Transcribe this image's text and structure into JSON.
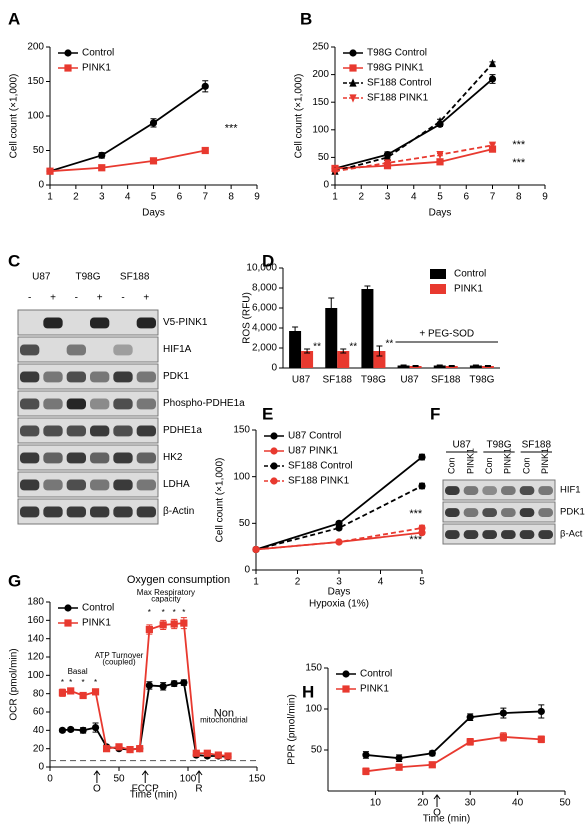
{
  "chart_data": [
    {
      "label": "A",
      "type": "line",
      "xlabel": "Days",
      "ylabel": "Cell count (×1,000)",
      "x": [
        1,
        3,
        5,
        7
      ],
      "xlim": [
        1,
        9
      ],
      "xticks": [
        1,
        2,
        3,
        4,
        5,
        6,
        7,
        8,
        9
      ],
      "ylim": [
        0,
        200
      ],
      "yticks": [
        0,
        50,
        100,
        150,
        200
      ],
      "legend": "upper left",
      "series": [
        {
          "name": "Control",
          "color": "#000000",
          "marker": "circle",
          "dash": false,
          "values": [
            20,
            43,
            90,
            143
          ],
          "errors": [
            1,
            4,
            6,
            8
          ]
        },
        {
          "name": "PINK1",
          "color": "#e8392f",
          "marker": "square",
          "dash": false,
          "values": [
            20,
            25,
            35,
            50
          ],
          "errors": [
            1,
            1,
            2,
            2
          ]
        }
      ],
      "annotations": [
        {
          "text": "***",
          "x": 8,
          "y": 82
        }
      ]
    },
    {
      "label": "B",
      "type": "line",
      "xlabel": "Days",
      "ylabel": "Cell count (×1,000)",
      "x": [
        1,
        3,
        5,
        7
      ],
      "xlim": [
        1,
        9
      ],
      "xticks": [
        1,
        2,
        3,
        4,
        5,
        6,
        7,
        8,
        9
      ],
      "ylim": [
        0,
        250
      ],
      "yticks": [
        0,
        50,
        100,
        150,
        200,
        250
      ],
      "legend": "upper left",
      "series": [
        {
          "name": "T98G Control",
          "color": "#000000",
          "marker": "circle",
          "dash": false,
          "values": [
            30,
            55,
            110,
            192
          ],
          "errors": [
            1,
            5,
            4,
            8
          ]
        },
        {
          "name": "T98G PINK1",
          "color": "#e8392f",
          "marker": "square",
          "dash": false,
          "values": [
            30,
            35,
            42,
            65
          ],
          "errors": [
            1,
            2,
            2,
            5
          ]
        },
        {
          "name": "SF188 Control",
          "color": "#000000",
          "marker": "triangle",
          "dash": true,
          "values": [
            25,
            50,
            115,
            220
          ],
          "errors": [
            1,
            3,
            4,
            3
          ]
        },
        {
          "name": "SF188 PINK1",
          "color": "#e8392f",
          "marker": "triangle-down",
          "dash": true,
          "values": [
            25,
            40,
            55,
            72
          ],
          "errors": [
            1,
            2,
            2,
            3
          ]
        }
      ],
      "annotations": [
        {
          "text": "***",
          "x": 8,
          "y": 72
        },
        {
          "text": "***",
          "x": 8,
          "y": 40
        }
      ]
    },
    {
      "label": "D",
      "type": "bar",
      "ylabel": "ROS (RFU)",
      "categories": [
        "U87",
        "SF188",
        "T98G",
        "U87",
        "SF188",
        "T98G"
      ],
      "ylim": [
        0,
        10000
      ],
      "yticks": [
        0,
        {
          "value": 2000,
          "label": "2,000"
        },
        {
          "value": 4000,
          "label": "4,000"
        },
        {
          "value": 6000,
          "label": "6,000"
        },
        {
          "value": 8000,
          "label": "8,000"
        },
        {
          "value": 10000,
          "label": "10,000"
        }
      ],
      "legend": "upper right",
      "group_label": "+ PEG-SOD",
      "series": [
        {
          "name": "Control",
          "color": "#000000",
          "values": [
            3700,
            6000,
            7900,
            250,
            250,
            250
          ],
          "errors": [
            400,
            1000,
            300,
            50,
            50,
            50
          ]
        },
        {
          "name": "PINK1",
          "color": "#e8392f",
          "values": [
            1700,
            1700,
            1700,
            200,
            200,
            200
          ],
          "errors": [
            200,
            200,
            500,
            50,
            50,
            50
          ],
          "significance": [
            "**",
            "**",
            "**",
            null,
            null,
            null
          ]
        }
      ]
    },
    {
      "label": "E",
      "type": "line",
      "xlabel": "Days",
      "xlabel2": "Hypoxia (1%)",
      "ylabel": "Cell count (×1,000)",
      "x": [
        1,
        3,
        5
      ],
      "xlim": [
        1,
        5
      ],
      "xticks": [
        1,
        2,
        3,
        4,
        5
      ],
      "ylim": [
        0,
        150
      ],
      "yticks": [
        0,
        50,
        100,
        150
      ],
      "legend": "upper left",
      "series": [
        {
          "name": "U87 Control",
          "color": "#000000",
          "marker": "circle",
          "dash": false,
          "values": [
            22,
            50,
            121
          ],
          "errors": [
            1,
            2,
            3
          ]
        },
        {
          "name": "U87 PINK1",
          "color": "#e8392f",
          "marker": "circle",
          "dash": false,
          "values": [
            22,
            30,
            40
          ],
          "errors": [
            1,
            1,
            2
          ]
        },
        {
          "name": "SF188 Control",
          "color": "#000000",
          "marker": "circle",
          "dash": true,
          "values": [
            22,
            45,
            90
          ],
          "errors": [
            1,
            2,
            3
          ]
        },
        {
          "name": "SF188 PINK1",
          "color": "#e8392f",
          "marker": "circle",
          "dash": true,
          "values": [
            22,
            30,
            45
          ],
          "errors": [
            1,
            1,
            3
          ]
        }
      ],
      "annotations": [
        {
          "text": "***",
          "x": 4.85,
          "y": 60
        },
        {
          "text": "***",
          "x": 4.85,
          "y": 32
        }
      ]
    },
    {
      "label": "G",
      "type": "line",
      "title": "Oxygen consumption",
      "xlabel": "Time (min)",
      "ylabel": "OCR (pmol/min)",
      "x": [
        9,
        15,
        24,
        33,
        41,
        50,
        58,
        65,
        72,
        82,
        90,
        97,
        106,
        114,
        122,
        129
      ],
      "xlim": [
        0,
        150
      ],
      "xticks": [
        0,
        50,
        100,
        150
      ],
      "ylim": [
        0,
        180
      ],
      "yticks": [
        0,
        20,
        40,
        60,
        80,
        100,
        120,
        140,
        160,
        180
      ],
      "legend": "upper left",
      "baseline": 7,
      "series": [
        {
          "name": "Control",
          "color": "#000000",
          "marker": "circle",
          "dash": false,
          "values": [
            40,
            41,
            40,
            43,
            22,
            20,
            19,
            20,
            89,
            88,
            91,
            92,
            13,
            12,
            12,
            11
          ],
          "errors": [
            2,
            2,
            3,
            5,
            2,
            2,
            2,
            2,
            4,
            4,
            3,
            3,
            2,
            2,
            2,
            2
          ]
        },
        {
          "name": "PINK1",
          "color": "#e8392f",
          "marker": "square",
          "dash": false,
          "values": [
            81,
            83,
            78,
            82,
            20,
            22,
            19,
            20,
            150,
            155,
            156,
            157,
            15,
            15,
            13,
            12
          ],
          "errors": [
            4,
            3,
            3,
            3,
            2,
            2,
            2,
            2,
            5,
            5,
            5,
            6,
            2,
            2,
            2,
            2
          ]
        }
      ],
      "injections": [
        {
          "label": "O",
          "x": 34
        },
        {
          "label": "FCCP",
          "x": 69
        },
        {
          "label": "R",
          "x": 108
        }
      ],
      "annotations": [
        {
          "text": "Basal",
          "x": 20,
          "y": 104
        },
        {
          "text": "ATP Turnover",
          "x": 50,
          "y": 121
        },
        {
          "text": "(coupled)",
          "x": 50,
          "y": 114
        },
        {
          "text": "Max Respiratory",
          "x": 84,
          "y": 190
        },
        {
          "text": "capacity",
          "x": 84,
          "y": 183
        },
        {
          "text": "Non",
          "x": 126,
          "y": 58
        },
        {
          "text": "mitochondrial",
          "x": 126,
          "y": 51
        },
        {
          "text": "*",
          "x": 9,
          "y": 92
        },
        {
          "text": "*",
          "x": 15,
          "y": 92
        },
        {
          "text": "*",
          "x": 24,
          "y": 92
        },
        {
          "text": "*",
          "x": 33,
          "y": 92
        },
        {
          "text": "*",
          "x": 72,
          "y": 168
        },
        {
          "text": "*",
          "x": 82,
          "y": 168
        },
        {
          "text": "*",
          "x": 90,
          "y": 168
        },
        {
          "text": "*",
          "x": 97,
          "y": 168
        }
      ]
    },
    {
      "label": "H",
      "type": "line",
      "xlabel": "Time (min)",
      "ylabel": "PPR (pmol/min)",
      "x": [
        8,
        15,
        22,
        30,
        37,
        45
      ],
      "xlim": [
        0,
        50
      ],
      "xticks": [
        10,
        20,
        30,
        40,
        50
      ],
      "ylim": [
        0,
        150
      ],
      "yticks": [
        50,
        100,
        150
      ],
      "legend": "upper left",
      "series": [
        {
          "name": "Control",
          "color": "#000000",
          "marker": "circle",
          "dash": false,
          "values": [
            44,
            40,
            46,
            90,
            95,
            97
          ],
          "errors": [
            4,
            4,
            3,
            4,
            6,
            8
          ]
        },
        {
          "name": "PINK1",
          "color": "#e8392f",
          "marker": "square",
          "dash": false,
          "values": [
            24,
            29,
            32,
            60,
            66,
            63
          ],
          "errors": [
            4,
            3,
            2,
            4,
            5,
            4
          ]
        }
      ],
      "injections": [
        {
          "label": "O",
          "x": 23
        }
      ]
    }
  ],
  "blots": [
    {
      "label": "C",
      "cell_lines": [
        "U87",
        "T98G",
        "SF188"
      ],
      "conditions": [
        "-",
        "+"
      ],
      "proteins": [
        "V5-PINK1",
        "HIF1A",
        "PDK1",
        "Phospho-PDHE1a",
        "PDHE1a",
        "HK2",
        "LDHA",
        "β-Actin"
      ]
    },
    {
      "label": "F",
      "cell_lines": [
        "U87",
        "T98G",
        "SF188"
      ],
      "conditions": [
        "Con",
        "PINK1"
      ],
      "proteins": [
        "HIF1",
        "PDK1",
        "β-Act"
      ]
    }
  ]
}
